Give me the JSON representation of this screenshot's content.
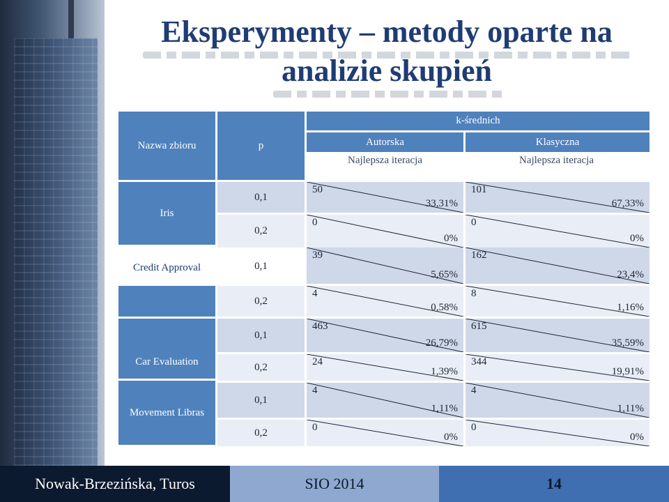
{
  "slide": {
    "title_line1": "Eksperymenty – metody oparte na",
    "title_line2": "analizie skupień"
  },
  "table": {
    "headers": {
      "dataset": "Nazwa zbioru",
      "p": "p",
      "k_means": "k-średnich",
      "autorska": "Autorska",
      "klasyczna": "Klasyczna",
      "best_iter_a": "Najlepsza iteracja",
      "best_iter_k": "Najlepsza iteracja"
    },
    "rows": [
      {
        "dataset": "Iris",
        "p": "0,1",
        "a_iter": "50",
        "a_pct": "33,31%",
        "k_iter": "101",
        "k_pct": "67,33%"
      },
      {
        "dataset": "",
        "p": "0,2",
        "a_iter": "0",
        "a_pct": "0%",
        "k_iter": "0",
        "k_pct": "0%"
      },
      {
        "dataset": "Credit Approval",
        "p": "0,1",
        "a_iter": "39",
        "a_pct": "5,65%",
        "k_iter": "162",
        "k_pct": "23,4%"
      },
      {
        "dataset": "",
        "p": "0,2",
        "a_iter": "4",
        "a_pct": "0,58%",
        "k_iter": "8",
        "k_pct": "1,16%"
      },
      {
        "dataset": "Car Evaluation",
        "p": "0,1",
        "a_iter": "463",
        "a_pct": "26,79%",
        "k_iter": "615",
        "k_pct": "35,59%"
      },
      {
        "dataset": "",
        "p": "0,2",
        "a_iter": "24",
        "a_pct": "1,39%",
        "k_iter": "344",
        "k_pct": "19,91%"
      },
      {
        "dataset": "Movement Libras",
        "p": "0,1",
        "a_iter": "4",
        "a_pct": "1,11%",
        "k_iter": "4",
        "k_pct": "1,11%"
      },
      {
        "dataset": "",
        "p": "0,2",
        "a_iter": "0",
        "a_pct": "0%",
        "k_iter": "0",
        "k_pct": "0%"
      }
    ]
  },
  "footer": {
    "authors": "Nowak-Brzezińska, Turos",
    "conference": "SIO 2014",
    "page_number": "14"
  },
  "colors": {
    "title": "#1f3c73",
    "header_blue": "#4f81bd",
    "row_dark": "#cfd8e9",
    "row_light": "#e9eef6",
    "footer_dark": "#0b1a2e",
    "footer_mid": "#8fa8cf",
    "footer_right": "#3f6fb0"
  }
}
